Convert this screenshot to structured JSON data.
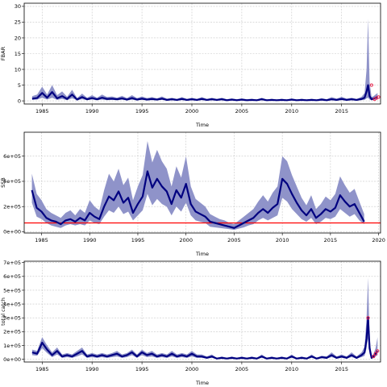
{
  "chart_data": [
    {
      "type": "line",
      "ylabel": "FBAR",
      "xlabel": "Time",
      "xlim": [
        1983.2,
        2018.9
      ],
      "ylim": [
        -1,
        31
      ],
      "x_ticks": [
        1985,
        1990,
        1995,
        2000,
        2005,
        2010,
        2015
      ],
      "y_ticks": [
        0,
        5,
        10,
        15,
        20,
        25,
        30
      ],
      "y_tick_labels": [
        "0",
        "5",
        "10",
        "15",
        "20",
        "25",
        "30"
      ],
      "grid": true,
      "median_color": "#000080",
      "band_color": "#8f93c9",
      "point_color": "#e8244c",
      "x": [
        1984.0,
        1984.5,
        1985.0,
        1985.5,
        1986.0,
        1986.5,
        1987.0,
        1987.5,
        1988.0,
        1988.5,
        1989.0,
        1989.5,
        1990.0,
        1990.5,
        1991.0,
        1991.5,
        1992.0,
        1992.5,
        1993.0,
        1993.5,
        1994.0,
        1994.5,
        1995.0,
        1995.5,
        1996.0,
        1996.5,
        1997.0,
        1997.5,
        1998.0,
        1998.5,
        1999.0,
        1999.5,
        2000.0,
        2000.5,
        2001.0,
        2001.5,
        2002.0,
        2002.5,
        2003.0,
        2003.5,
        2004.0,
        2004.5,
        2005.0,
        2005.5,
        2006.0,
        2006.5,
        2007.0,
        2007.5,
        2008.0,
        2008.5,
        2009.0,
        2009.5,
        2010.0,
        2010.5,
        2011.0,
        2011.5,
        2012.0,
        2012.5,
        2013.0,
        2013.5,
        2014.0,
        2014.5,
        2015.0,
        2015.5,
        2016.0,
        2016.5,
        2017.0,
        2017.3,
        2017.5,
        2017.65,
        2017.8,
        2018.0,
        2018.2,
        2018.4,
        2018.6
      ],
      "median": [
        0.7,
        0.9,
        2.5,
        1.0,
        2.8,
        0.8,
        1.5,
        0.6,
        2.0,
        0.4,
        1.2,
        0.5,
        0.9,
        0.5,
        1.0,
        0.6,
        0.7,
        0.5,
        0.8,
        0.4,
        0.9,
        0.4,
        0.7,
        0.4,
        0.6,
        0.4,
        0.7,
        0.3,
        0.5,
        0.3,
        0.6,
        0.3,
        0.5,
        0.3,
        0.6,
        0.3,
        0.5,
        0.3,
        0.5,
        0.2,
        0.4,
        0.2,
        0.4,
        0.2,
        0.3,
        0.2,
        0.5,
        0.2,
        0.3,
        0.2,
        0.3,
        0.2,
        0.4,
        0.2,
        0.3,
        0.2,
        0.3,
        0.2,
        0.4,
        0.2,
        0.5,
        0.3,
        0.6,
        0.3,
        0.5,
        0.3,
        0.6,
        1.0,
        3.0,
        5.0,
        1.5,
        0.5,
        0.7,
        1.0,
        1.3
      ],
      "lower": [
        0.3,
        0.4,
        1.0,
        0.4,
        1.0,
        0.3,
        0.6,
        0.2,
        0.8,
        0.2,
        0.5,
        0.2,
        0.4,
        0.2,
        0.4,
        0.2,
        0.3,
        0.2,
        0.3,
        0.2,
        0.3,
        0.2,
        0.3,
        0.2,
        0.2,
        0.2,
        0.3,
        0.1,
        0.2,
        0.1,
        0.2,
        0.1,
        0.2,
        0.1,
        0.2,
        0.1,
        0.2,
        0.1,
        0.2,
        0.1,
        0.1,
        0.1,
        0.1,
        0.1,
        0.1,
        0.1,
        0.2,
        0.1,
        0.1,
        0.1,
        0.1,
        0.1,
        0.1,
        0.1,
        0.1,
        0.1,
        0.1,
        0.1,
        0.1,
        0.1,
        0.2,
        0.1,
        0.2,
        0.1,
        0.2,
        0.1,
        0.2,
        0.3,
        0.8,
        1.0,
        0.4,
        0.2,
        0.3,
        0.4,
        0.5
      ],
      "upper": [
        1.5,
        2.0,
        4.5,
        2.0,
        5.0,
        1.8,
        3.0,
        1.3,
        3.5,
        0.9,
        2.3,
        1.0,
        1.8,
        1.0,
        2.0,
        1.2,
        1.4,
        1.0,
        1.6,
        0.9,
        1.8,
        0.9,
        1.4,
        0.9,
        1.2,
        0.8,
        1.4,
        0.7,
        1.0,
        0.6,
        1.2,
        0.6,
        1.0,
        0.6,
        1.2,
        0.6,
        1.0,
        0.6,
        1.0,
        0.5,
        0.8,
        0.5,
        0.8,
        0.5,
        0.7,
        0.4,
        1.0,
        0.4,
        0.7,
        0.4,
        0.7,
        0.4,
        0.8,
        0.4,
        0.7,
        0.4,
        0.7,
        0.4,
        0.9,
        0.5,
        1.2,
        0.7,
        1.3,
        0.7,
        1.0,
        0.6,
        1.3,
        2.5,
        10.0,
        26.0,
        6.0,
        1.2,
        1.5,
        2.0,
        2.5
      ],
      "points": [
        {
          "x": 2018.0,
          "y": 5.0
        },
        {
          "x": 2018.3,
          "y": 0.5
        },
        {
          "x": 2018.5,
          "y": 0.9
        },
        {
          "x": 2018.7,
          "y": 1.2
        }
      ]
    },
    {
      "type": "line",
      "ylabel": "SSB",
      "xlabel": "Time",
      "xlim": [
        1983.2,
        2020.2
      ],
      "ylim": [
        -10000,
        790000
      ],
      "x_ticks": [
        1985,
        1990,
        1995,
        2000,
        2005,
        2010,
        2015,
        2020
      ],
      "y_ticks": [
        0,
        200000,
        400000,
        600000
      ],
      "y_tick_labels": [
        "0e+00",
        "2e+05",
        "4e+05",
        "6e+05"
      ],
      "grid": true,
      "median_color": "#000080",
      "band_color": "#8f93c9",
      "reference_line": {
        "y": 70000,
        "color": "#ff0000"
      },
      "x": [
        1984.0,
        1984.5,
        1985.0,
        1985.5,
        1986.0,
        1986.5,
        1987.0,
        1987.5,
        1988.0,
        1988.5,
        1989.0,
        1989.5,
        1990.0,
        1990.5,
        1991.0,
        1991.5,
        1992.0,
        1992.5,
        1993.0,
        1993.5,
        1994.0,
        1994.5,
        1995.0,
        1995.5,
        1996.0,
        1996.5,
        1997.0,
        1997.5,
        1998.0,
        1998.5,
        1999.0,
        1999.5,
        2000.0,
        2000.5,
        2001.0,
        2001.5,
        2002.0,
        2002.5,
        2003.0,
        2003.5,
        2004.0,
        2004.5,
        2005.0,
        2005.5,
        2006.0,
        2006.5,
        2007.0,
        2007.5,
        2008.0,
        2008.5,
        2009.0,
        2009.5,
        2010.0,
        2010.5,
        2011.0,
        2011.5,
        2012.0,
        2012.5,
        2013.0,
        2013.5,
        2014.0,
        2014.5,
        2015.0,
        2015.5,
        2016.0,
        2016.5,
        2017.0,
        2017.5,
        2018.0,
        2018.5
      ],
      "median": [
        330000,
        190000,
        160000,
        110000,
        90000,
        80000,
        60000,
        90000,
        100000,
        80000,
        110000,
        90000,
        150000,
        120000,
        100000,
        200000,
        280000,
        250000,
        320000,
        230000,
        270000,
        150000,
        220000,
        280000,
        480000,
        350000,
        420000,
        360000,
        320000,
        220000,
        330000,
        270000,
        380000,
        220000,
        160000,
        140000,
        120000,
        80000,
        70000,
        60000,
        50000,
        40000,
        30000,
        50000,
        70000,
        90000,
        110000,
        150000,
        180000,
        150000,
        190000,
        220000,
        420000,
        380000,
        300000,
        230000,
        170000,
        130000,
        180000,
        110000,
        140000,
        180000,
        160000,
        190000,
        290000,
        240000,
        200000,
        220000,
        150000,
        80000
      ],
      "lower": [
        230000,
        120000,
        100000,
        70000,
        50000,
        40000,
        30000,
        50000,
        60000,
        50000,
        60000,
        50000,
        90000,
        70000,
        60000,
        120000,
        170000,
        150000,
        200000,
        140000,
        160000,
        90000,
        130000,
        170000,
        300000,
        210000,
        260000,
        220000,
        200000,
        130000,
        200000,
        160000,
        230000,
        130000,
        90000,
        80000,
        70000,
        40000,
        35000,
        30000,
        25000,
        20000,
        15000,
        25000,
        35000,
        50000,
        60000,
        90000,
        110000,
        90000,
        110000,
        130000,
        270000,
        240000,
        180000,
        140000,
        100000,
        80000,
        110000,
        60000,
        80000,
        110000,
        100000,
        120000,
        180000,
        150000,
        120000,
        140000,
        90000,
        60000
      ],
      "upper": [
        460000,
        300000,
        250000,
        180000,
        150000,
        130000,
        110000,
        150000,
        170000,
        130000,
        180000,
        150000,
        250000,
        200000,
        170000,
        330000,
        460000,
        400000,
        500000,
        370000,
        430000,
        250000,
        360000,
        450000,
        720000,
        550000,
        650000,
        560000,
        500000,
        360000,
        520000,
        430000,
        600000,
        360000,
        260000,
        230000,
        200000,
        140000,
        120000,
        100000,
        90000,
        70000,
        60000,
        90000,
        120000,
        150000,
        180000,
        240000,
        290000,
        240000,
        310000,
        360000,
        600000,
        560000,
        450000,
        360000,
        270000,
        210000,
        290000,
        180000,
        220000,
        280000,
        250000,
        300000,
        440000,
        370000,
        310000,
        340000,
        240000,
        140000
      ]
    },
    {
      "type": "line",
      "ylabel": "total catch",
      "xlabel": "Time",
      "xlim": [
        1983.2,
        2018.9
      ],
      "ylim": [
        -20000,
        710000
      ],
      "x_ticks": [
        1985,
        1990,
        1995,
        2000,
        2005,
        2010,
        2015
      ],
      "y_ticks": [
        0,
        100000,
        200000,
        300000,
        400000,
        500000,
        600000,
        700000
      ],
      "y_tick_labels": [
        "0e+00",
        "1e+05",
        "2e+05",
        "3e+05",
        "4e+05",
        "5e+05",
        "6e+05",
        "7e+05"
      ],
      "grid": true,
      "median_color": "#000080",
      "band_color": "#8f93c9",
      "point_color": "#e8244c",
      "x": [
        1984.0,
        1984.5,
        1985.0,
        1985.5,
        1986.0,
        1986.5,
        1987.0,
        1987.5,
        1988.0,
        1988.5,
        1989.0,
        1989.5,
        1990.0,
        1990.5,
        1991.0,
        1991.5,
        1992.0,
        1992.5,
        1993.0,
        1993.5,
        1994.0,
        1994.5,
        1995.0,
        1995.5,
        1996.0,
        1996.5,
        1997.0,
        1997.5,
        1998.0,
        1998.5,
        1999.0,
        1999.5,
        2000.0,
        2000.5,
        2001.0,
        2001.5,
        2002.0,
        2002.5,
        2003.0,
        2003.5,
        2004.0,
        2004.5,
        2005.0,
        2005.5,
        2006.0,
        2006.5,
        2007.0,
        2007.5,
        2008.0,
        2008.5,
        2009.0,
        2009.5,
        2010.0,
        2010.5,
        2011.0,
        2011.5,
        2012.0,
        2012.5,
        2013.0,
        2013.5,
        2014.0,
        2014.5,
        2015.0,
        2015.5,
        2016.0,
        2016.5,
        2017.0,
        2017.3,
        2017.5,
        2017.65,
        2017.8,
        2018.0,
        2018.2,
        2018.4,
        2018.6
      ],
      "median": [
        50000,
        40000,
        120000,
        70000,
        30000,
        60000,
        20000,
        30000,
        20000,
        40000,
        60000,
        20000,
        30000,
        20000,
        30000,
        20000,
        30000,
        40000,
        20000,
        30000,
        50000,
        20000,
        50000,
        30000,
        40000,
        20000,
        30000,
        20000,
        40000,
        20000,
        30000,
        20000,
        40000,
        20000,
        20000,
        10000,
        20000,
        5000,
        10000,
        5000,
        10000,
        5000,
        10000,
        5000,
        10000,
        5000,
        20000,
        5000,
        10000,
        5000,
        10000,
        5000,
        20000,
        5000,
        10000,
        5000,
        20000,
        5000,
        15000,
        10000,
        30000,
        10000,
        20000,
        10000,
        30000,
        10000,
        30000,
        50000,
        150000,
        300000,
        80000,
        10000,
        20000,
        40000,
        60000
      ],
      "lower": [
        30000,
        25000,
        80000,
        45000,
        15000,
        35000,
        10000,
        15000,
        10000,
        20000,
        35000,
        10000,
        15000,
        10000,
        15000,
        10000,
        15000,
        20000,
        10000,
        15000,
        30000,
        10000,
        30000,
        15000,
        20000,
        10000,
        15000,
        10000,
        20000,
        10000,
        15000,
        10000,
        20000,
        10000,
        10000,
        5000,
        10000,
        2000,
        5000,
        2000,
        5000,
        2000,
        5000,
        2000,
        5000,
        2000,
        10000,
        2000,
        5000,
        2000,
        5000,
        2000,
        10000,
        2000,
        5000,
        2000,
        10000,
        2000,
        8000,
        5000,
        15000,
        5000,
        10000,
        5000,
        15000,
        5000,
        15000,
        25000,
        80000,
        150000,
        40000,
        5000,
        10000,
        20000,
        30000
      ],
      "upper": [
        70000,
        60000,
        160000,
        100000,
        50000,
        85000,
        35000,
        45000,
        35000,
        60000,
        85000,
        35000,
        45000,
        35000,
        45000,
        35000,
        45000,
        60000,
        35000,
        45000,
        70000,
        35000,
        70000,
        45000,
        60000,
        35000,
        45000,
        35000,
        60000,
        35000,
        45000,
        35000,
        60000,
        35000,
        35000,
        20000,
        35000,
        10000,
        20000,
        10000,
        20000,
        10000,
        20000,
        10000,
        20000,
        10000,
        35000,
        10000,
        20000,
        10000,
        20000,
        10000,
        35000,
        10000,
        20000,
        10000,
        35000,
        10000,
        25000,
        20000,
        50000,
        20000,
        35000,
        20000,
        50000,
        20000,
        50000,
        90000,
        300000,
        590000,
        160000,
        20000,
        40000,
        80000,
        160000
      ],
      "points": [
        {
          "x": 2017.65,
          "y": 300000
        },
        {
          "x": 2018.2,
          "y": 20000
        },
        {
          "x": 2018.4,
          "y": 40000
        },
        {
          "x": 2018.6,
          "y": 60000
        }
      ]
    }
  ]
}
